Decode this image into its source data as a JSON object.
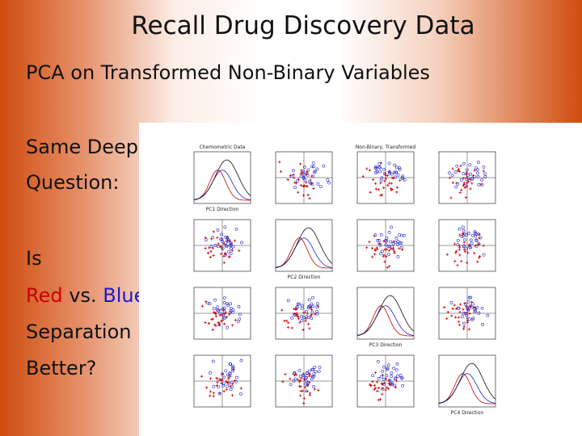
{
  "title": "Recall Drug Discovery Data",
  "subtitle": "PCA on Transformed Non-Binary Variables",
  "body": {
    "question": [
      "Same Deep",
      "Question:"
    ],
    "is": "Is",
    "red": "Red",
    "vs": "vs.",
    "blue": "Blue",
    "rest": [
      "Separation",
      "Better?"
    ]
  },
  "figure": {
    "titles": [
      "Chemometric Data",
      "Non-Binary, Transformed"
    ],
    "axis_labels": [
      "PC1 Direction",
      "PC2 Direction",
      "PC3 Direction",
      "PC4 Direction"
    ]
  }
}
